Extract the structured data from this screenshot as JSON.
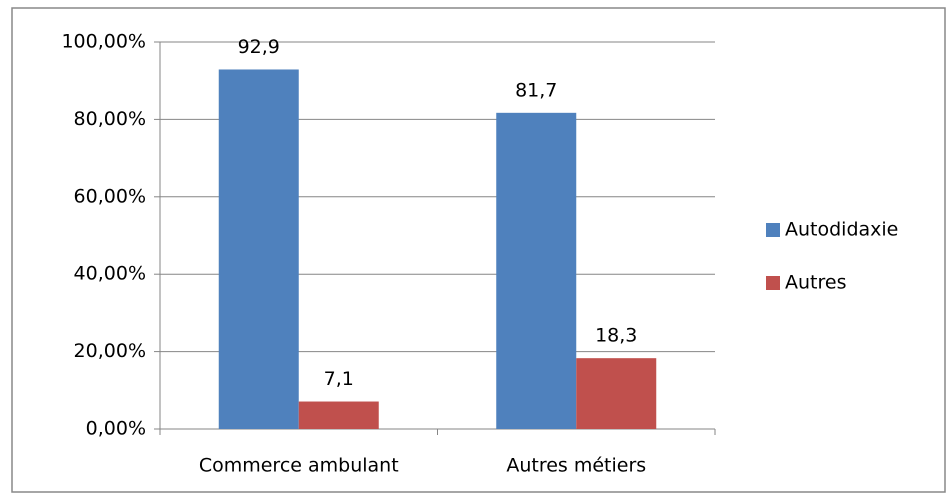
{
  "chart_data": {
    "type": "bar",
    "categories": [
      "Commerce ambulant",
      "Autres métiers"
    ],
    "series": [
      {
        "name": "Autodidaxie",
        "color": "#4f81bd",
        "values": [
          92.9,
          81.7
        ],
        "value_labels": [
          "92,9",
          "81,7"
        ]
      },
      {
        "name": "Autres",
        "color": "#c0504d",
        "values": [
          7.1,
          18.3
        ],
        "value_labels": [
          "7,1",
          "18,3"
        ]
      }
    ],
    "ylim": [
      0,
      100
    ],
    "yticks": [
      {
        "value": 0,
        "label": "0,00%"
      },
      {
        "value": 20,
        "label": "20,00%"
      },
      {
        "value": 40,
        "label": "40,00%"
      },
      {
        "value": 60,
        "label": "60,00%"
      },
      {
        "value": 80,
        "label": "80,00%"
      },
      {
        "value": 100,
        "label": "100,00%"
      }
    ],
    "grid": true,
    "legend": "right"
  }
}
